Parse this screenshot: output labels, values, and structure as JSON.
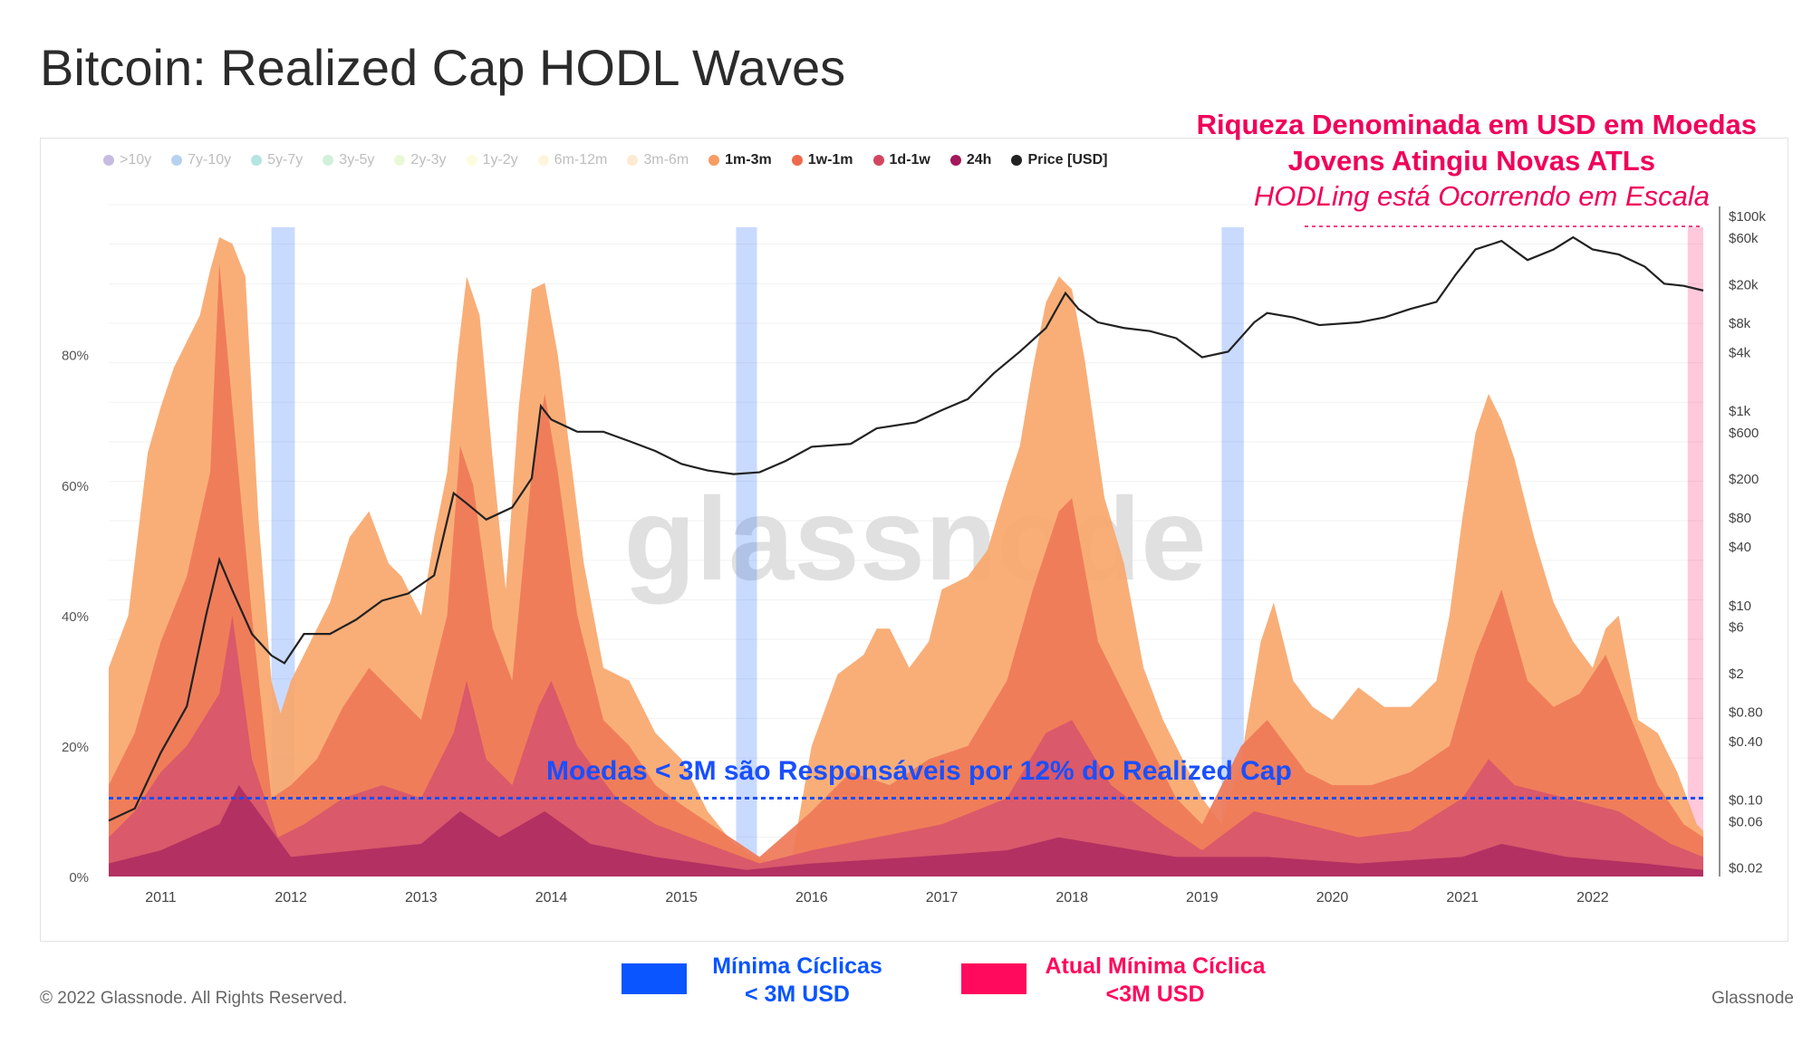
{
  "title": "Bitcoin: Realized Cap HODL Waves",
  "watermark": "glassnode",
  "copyright": "© 2022 Glassnode. All Rights Reserved.",
  "brand": "Glassnode",
  "legend": [
    {
      "label": ">10y",
      "color": "#5b3fa8",
      "active": false
    },
    {
      "label": "7y-10y",
      "color": "#2f7fd1",
      "active": false
    },
    {
      "label": "5y-7y",
      "color": "#2bb5a4",
      "active": false
    },
    {
      "label": "3y-5y",
      "color": "#7fd38f",
      "active": false
    },
    {
      "label": "2y-3y",
      "color": "#c6ec8a",
      "active": false
    },
    {
      "label": "1y-2y",
      "color": "#f4f5a0",
      "active": false
    },
    {
      "label": "6m-12m",
      "color": "#fde69a",
      "active": false
    },
    {
      "label": "3m-6m",
      "color": "#fcc47e",
      "active": false
    },
    {
      "label": "1m-3m",
      "color": "#f89c62",
      "active": true
    },
    {
      "label": "1w-1m",
      "color": "#ee6a4c",
      "active": true
    },
    {
      "label": "1d-1w",
      "color": "#d34660",
      "active": true
    },
    {
      "label": "24h",
      "color": "#a3195b",
      "active": true
    },
    {
      "label": "Price [USD]",
      "color": "#222222",
      "active": true
    }
  ],
  "annotations": {
    "top_line1": "Riqueza Denominada em USD em Moedas",
    "top_line2": "Jovens Atingiu Novas ATLs",
    "top_line3": "HODLing está Ocorrendo em Escala",
    "blue_line": "Moedas < 3M são Responsáveis por 12% do Realized Cap"
  },
  "key": {
    "blue_line1": "Mínima Cíclicas",
    "blue_line2": "< 3M USD",
    "blue_color": "#0a55ff",
    "red_line1": "Atual Mínima Cíclica",
    "red_line2": "<3M USD",
    "red_color": "#ff0a5c"
  },
  "chart_data": {
    "type": "area",
    "title": "Bitcoin: Realized Cap HODL Waves",
    "x_tick_labels": [
      "2011",
      "2012",
      "2013",
      "2014",
      "2015",
      "2016",
      "2017",
      "2018",
      "2019",
      "2020",
      "2021",
      "2022"
    ],
    "y_left_tick_labels": [
      "0%",
      "20%",
      "40%",
      "60%",
      "80%"
    ],
    "y_left_range": [
      0,
      100
    ],
    "y_right_tick_labels": [
      "$0.02",
      "$0.06",
      "$0.10",
      "$0.40",
      "$0.80",
      "$2",
      "$6",
      "$10",
      "$40",
      "$80",
      "$200",
      "$600",
      "$1k",
      "$4k",
      "$8k",
      "$20k",
      "$60k",
      "$100k"
    ],
    "y_right_scale": "log",
    "grid": true,
    "legend_position": "top",
    "x_range": [
      2010.6,
      2022.85
    ],
    "series": [
      {
        "name": "1m-3m",
        "color": "#f9a76c",
        "x": [
          2010.6,
          2010.75,
          2010.9,
          2011.0,
          2011.1,
          2011.2,
          2011.3,
          2011.38,
          2011.45,
          2011.55,
          2011.65,
          2011.75,
          2011.85,
          2011.92,
          2012.0,
          2012.15,
          2012.3,
          2012.45,
          2012.6,
          2012.75,
          2012.85,
          2013.0,
          2013.1,
          2013.2,
          2013.28,
          2013.35,
          2013.45,
          2013.55,
          2013.65,
          2013.75,
          2013.85,
          2013.95,
          2014.05,
          2014.15,
          2014.25,
          2014.4,
          2014.6,
          2014.8,
          2015.0,
          2015.2,
          2015.4,
          2015.55,
          2015.7,
          2015.85,
          2016.0,
          2016.2,
          2016.4,
          2016.5,
          2016.6,
          2016.75,
          2016.9,
          2017.0,
          2017.2,
          2017.35,
          2017.5,
          2017.6,
          2017.7,
          2017.8,
          2017.9,
          2018.0,
          2018.1,
          2018.25,
          2018.4,
          2018.55,
          2018.7,
          2018.85,
          2019.0,
          2019.15,
          2019.3,
          2019.45,
          2019.55,
          2019.7,
          2019.85,
          2020.0,
          2020.2,
          2020.4,
          2020.6,
          2020.8,
          2020.9,
          2021.0,
          2021.1,
          2021.2,
          2021.3,
          2021.4,
          2021.55,
          2021.7,
          2021.85,
          2022.0,
          2022.1,
          2022.2,
          2022.35,
          2022.5,
          2022.65,
          2022.8,
          2022.85
        ],
        "values": [
          32,
          40,
          65,
          72,
          78,
          82,
          86,
          93,
          98,
          97,
          92,
          55,
          30,
          25,
          30,
          36,
          42,
          52,
          56,
          48,
          46,
          40,
          52,
          62,
          80,
          92,
          86,
          64,
          44,
          72,
          90,
          91,
          80,
          64,
          48,
          32,
          30,
          22,
          18,
          10,
          5,
          3,
          2,
          3,
          20,
          31,
          34,
          38,
          38,
          32,
          36,
          44,
          46,
          50,
          60,
          66,
          78,
          88,
          92,
          90,
          79,
          58,
          48,
          32,
          24,
          18,
          12,
          8,
          18,
          36,
          42,
          30,
          26,
          24,
          29,
          26,
          26,
          30,
          40,
          55,
          68,
          74,
          70,
          64,
          52,
          42,
          36,
          32,
          38,
          40,
          24,
          22,
          16,
          8,
          7
        ]
      },
      {
        "name": "1w-1m",
        "color": "#ef7857",
        "x": [
          2010.6,
          2010.8,
          2011.0,
          2011.2,
          2011.38,
          2011.45,
          2011.55,
          2011.7,
          2011.85,
          2012.0,
          2012.2,
          2012.4,
          2012.6,
          2012.8,
          2013.0,
          2013.2,
          2013.3,
          2013.4,
          2013.55,
          2013.7,
          2013.85,
          2013.95,
          2014.05,
          2014.2,
          2014.4,
          2014.6,
          2014.8,
          2015.0,
          2015.3,
          2015.6,
          2016.0,
          2016.3,
          2016.6,
          2016.9,
          2017.2,
          2017.5,
          2017.7,
          2017.9,
          2018.0,
          2018.2,
          2018.4,
          2018.6,
          2018.8,
          2019.0,
          2019.3,
          2019.5,
          2019.8,
          2020.0,
          2020.3,
          2020.6,
          2020.9,
          2021.1,
          2021.3,
          2021.5,
          2021.7,
          2021.9,
          2022.1,
          2022.3,
          2022.5,
          2022.7,
          2022.85
        ],
        "values": [
          14,
          22,
          36,
          46,
          62,
          94,
          72,
          40,
          12,
          14,
          18,
          26,
          32,
          28,
          24,
          40,
          66,
          60,
          38,
          30,
          62,
          74,
          62,
          40,
          24,
          20,
          14,
          11,
          7,
          3,
          10,
          16,
          14,
          18,
          20,
          30,
          44,
          56,
          58,
          36,
          28,
          20,
          12,
          8,
          20,
          24,
          16,
          14,
          14,
          16,
          20,
          34,
          44,
          30,
          26,
          28,
          34,
          24,
          14,
          8,
          6
        ]
      },
      {
        "name": "1d-1w",
        "color": "#d8566b",
        "x": [
          2010.6,
          2010.8,
          2011.0,
          2011.2,
          2011.45,
          2011.55,
          2011.7,
          2011.9,
          2012.1,
          2012.4,
          2012.7,
          2013.0,
          2013.25,
          2013.35,
          2013.5,
          2013.7,
          2013.9,
          2014.0,
          2014.2,
          2014.5,
          2014.8,
          2015.2,
          2015.6,
          2016.0,
          2016.5,
          2017.0,
          2017.5,
          2017.8,
          2018.0,
          2018.3,
          2018.7,
          2019.0,
          2019.4,
          2019.8,
          2020.2,
          2020.6,
          2021.0,
          2021.2,
          2021.4,
          2021.8,
          2022.2,
          2022.6,
          2022.85
        ],
        "values": [
          6,
          10,
          16,
          20,
          28,
          40,
          18,
          6,
          8,
          12,
          14,
          12,
          22,
          30,
          18,
          14,
          26,
          30,
          20,
          12,
          8,
          5,
          2,
          4,
          6,
          8,
          12,
          22,
          24,
          14,
          8,
          4,
          10,
          8,
          6,
          7,
          12,
          18,
          14,
          12,
          10,
          5,
          3
        ]
      },
      {
        "name": "24h",
        "color": "#b02c62",
        "x": [
          2010.6,
          2011.0,
          2011.45,
          2011.6,
          2012.0,
          2012.5,
          2013.0,
          2013.3,
          2013.6,
          2013.95,
          2014.3,
          2014.8,
          2015.5,
          2016.0,
          2016.8,
          2017.5,
          2017.9,
          2018.2,
          2018.8,
          2019.5,
          2020.2,
          2021.0,
          2021.3,
          2021.8,
          2022.4,
          2022.85
        ],
        "values": [
          2,
          4,
          8,
          14,
          3,
          4,
          5,
          10,
          6,
          10,
          5,
          3,
          1,
          2,
          3,
          4,
          6,
          5,
          3,
          3,
          2,
          3,
          5,
          3,
          2,
          1
        ]
      },
      {
        "name": "Price [USD]",
        "color": "#222222",
        "x": [
          2010.6,
          2010.8,
          2011.0,
          2011.2,
          2011.35,
          2011.45,
          2011.55,
          2011.7,
          2011.85,
          2011.95,
          2012.1,
          2012.3,
          2012.5,
          2012.7,
          2012.9,
          2013.1,
          2013.25,
          2013.35,
          2013.5,
          2013.7,
          2013.85,
          2013.92,
          2014.0,
          2014.2,
          2014.4,
          2014.6,
          2014.8,
          2015.0,
          2015.2,
          2015.4,
          2015.6,
          2015.8,
          2016.0,
          2016.3,
          2016.5,
          2016.8,
          2017.0,
          2017.2,
          2017.4,
          2017.6,
          2017.8,
          2017.95,
          2018.05,
          2018.2,
          2018.4,
          2018.6,
          2018.8,
          2019.0,
          2019.2,
          2019.4,
          2019.5,
          2019.7,
          2019.9,
          2020.2,
          2020.4,
          2020.6,
          2020.8,
          2020.95,
          2021.1,
          2021.3,
          2021.5,
          2021.7,
          2021.85,
          2022.0,
          2022.2,
          2022.4,
          2022.55,
          2022.7,
          2022.85
        ],
        "values": [
          0.06,
          0.08,
          0.3,
          0.9,
          8,
          29,
          14,
          5,
          3,
          2.5,
          5,
          5,
          7,
          11,
          13,
          20,
          140,
          110,
          75,
          100,
          200,
          1100,
          800,
          600,
          600,
          480,
          380,
          280,
          240,
          220,
          230,
          300,
          420,
          450,
          650,
          750,
          1000,
          1300,
          2400,
          4000,
          7000,
          16000,
          11000,
          8000,
          7000,
          6500,
          5500,
          3500,
          4000,
          8000,
          10000,
          9000,
          7500,
          8000,
          9000,
          11000,
          13000,
          25000,
          45000,
          55000,
          35000,
          45000,
          60000,
          45000,
          40000,
          30000,
          20000,
          19000,
          17000
        ]
      }
    ]
  }
}
